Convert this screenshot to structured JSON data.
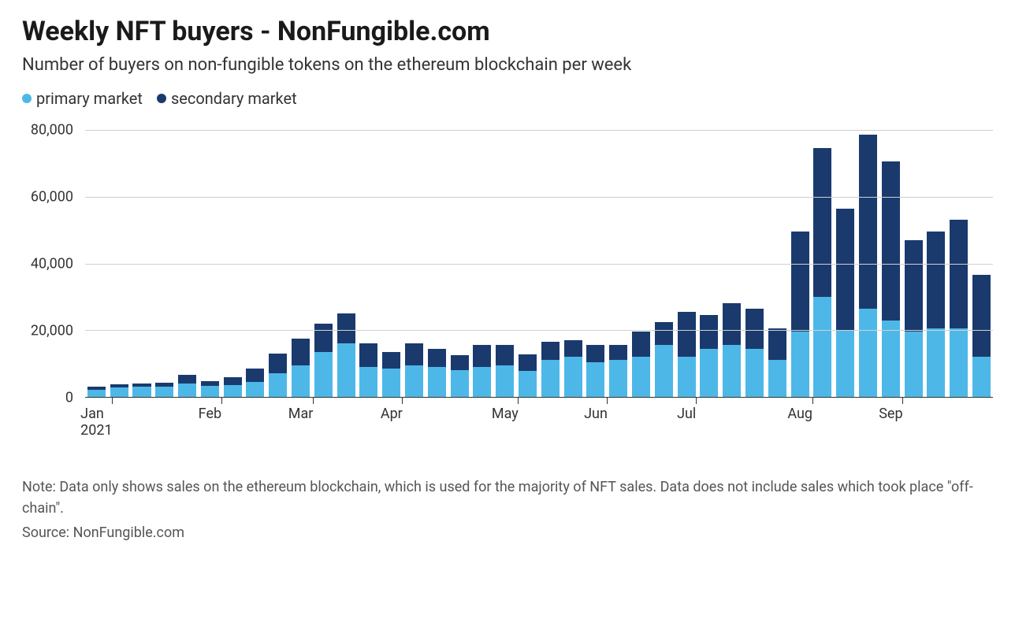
{
  "title": "Weekly NFT buyers - NonFungible.com",
  "subtitle": "Number of buyers on non-fungible tokens on the ethereum blockchain per week",
  "legend": {
    "primary": {
      "label": "primary market",
      "color": "#4db8e8"
    },
    "secondary": {
      "label": "secondary market",
      "color": "#1a3a6e"
    }
  },
  "chart": {
    "type": "stacked-bar",
    "background_color": "#ffffff",
    "grid_color": "#d0d0d0",
    "axis_color": "#333333",
    "ylim": [
      0,
      80000
    ],
    "yticks": [
      0,
      20000,
      40000,
      60000,
      80000
    ],
    "ytick_labels": [
      "0",
      "20,000",
      "40,000",
      "60,000",
      "80,000"
    ],
    "bar_width_pct": 80,
    "xticks": [
      {
        "index": 0,
        "label": "Jan",
        "sub": "2021"
      },
      {
        "index": 5,
        "label": "Feb"
      },
      {
        "index": 9,
        "label": "Mar"
      },
      {
        "index": 13,
        "label": "Apr"
      },
      {
        "index": 18,
        "label": "May"
      },
      {
        "index": 22,
        "label": "Jun"
      },
      {
        "index": 26,
        "label": "Jul"
      },
      {
        "index": 31,
        "label": "Aug"
      },
      {
        "index": 35,
        "label": "Sep"
      }
    ],
    "data": [
      {
        "primary": 2200,
        "secondary": 900
      },
      {
        "primary": 2800,
        "secondary": 1000
      },
      {
        "primary": 3000,
        "secondary": 1100
      },
      {
        "primary": 3000,
        "secondary": 1200
      },
      {
        "primary": 4000,
        "secondary": 2500
      },
      {
        "primary": 3200,
        "secondary": 1600
      },
      {
        "primary": 3600,
        "secondary": 2200
      },
      {
        "primary": 4500,
        "secondary": 4000
      },
      {
        "primary": 7000,
        "secondary": 6000
      },
      {
        "primary": 9500,
        "secondary": 8000
      },
      {
        "primary": 13500,
        "secondary": 8500
      },
      {
        "primary": 16000,
        "secondary": 9000
      },
      {
        "primary": 9000,
        "secondary": 7000
      },
      {
        "primary": 8500,
        "secondary": 5000
      },
      {
        "primary": 9500,
        "secondary": 6500
      },
      {
        "primary": 9000,
        "secondary": 5500
      },
      {
        "primary": 8000,
        "secondary": 4500
      },
      {
        "primary": 9000,
        "secondary": 6500
      },
      {
        "primary": 9500,
        "secondary": 6000
      },
      {
        "primary": 7800,
        "secondary": 5000
      },
      {
        "primary": 11000,
        "secondary": 5500
      },
      {
        "primary": 12000,
        "secondary": 5000
      },
      {
        "primary": 10500,
        "secondary": 5000
      },
      {
        "primary": 11000,
        "secondary": 4500
      },
      {
        "primary": 12000,
        "secondary": 7500
      },
      {
        "primary": 15500,
        "secondary": 7000
      },
      {
        "primary": 12000,
        "secondary": 13500
      },
      {
        "primary": 14500,
        "secondary": 10000
      },
      {
        "primary": 15500,
        "secondary": 12500
      },
      {
        "primary": 14500,
        "secondary": 12000
      },
      {
        "primary": 11000,
        "secondary": 9500
      },
      {
        "primary": 19500,
        "secondary": 30000
      },
      {
        "primary": 30000,
        "secondary": 44500
      },
      {
        "primary": 20000,
        "secondary": 36500
      },
      {
        "primary": 26500,
        "secondary": 52000
      },
      {
        "primary": 23000,
        "secondary": 47500
      },
      {
        "primary": 19500,
        "secondary": 27500
      },
      {
        "primary": 20500,
        "secondary": 29000
      },
      {
        "primary": 20500,
        "secondary": 32500
      },
      {
        "primary": 12000,
        "secondary": 24500
      }
    ]
  },
  "note": "Note: Data only shows sales on the ethereum blockchain, which is used for the majority of NFT sales. Data does not include sales which took place \"off-chain\".",
  "source": "Source: NonFungible.com",
  "typography": {
    "title_fontsize": 34,
    "subtitle_fontsize": 22,
    "legend_fontsize": 20,
    "axis_fontsize": 18,
    "footer_fontsize": 18
  }
}
